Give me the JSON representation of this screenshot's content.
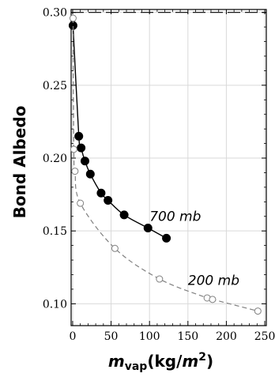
{
  "chart_data": {
    "type": "scatter",
    "ylabel": "Bond Albedo",
    "xlabel": {
      "base": "m",
      "sub": "vap",
      "rest": "(kg/",
      "unit": "m",
      "sup": "2",
      "close": ")"
    },
    "xlim": [
      -2,
      252
    ],
    "ylim": [
      0.085,
      0.302
    ],
    "xticks": [
      0,
      50,
      100,
      150,
      200,
      250
    ],
    "xtick_labels": [
      "0",
      "50",
      "100",
      "150",
      "200",
      "250"
    ],
    "yticks": [
      0.1,
      0.15,
      0.2,
      0.25,
      0.3
    ],
    "ytick_labels": [
      "0.10",
      "0.15",
      "0.20",
      "0.25",
      "0.30"
    ],
    "grid": true,
    "reference_line": {
      "y": 0.3,
      "style": "long-dash"
    },
    "series": [
      {
        "name": "700 mb",
        "marker": "filled-circle",
        "line": "solid",
        "color": "#000000",
        "points": [
          {
            "x": 0.5,
            "y": 0.291
          },
          {
            "x": 8,
            "y": 0.215
          },
          {
            "x": 11,
            "y": 0.207
          },
          {
            "x": 16,
            "y": 0.198
          },
          {
            "x": 23,
            "y": 0.189
          },
          {
            "x": 37,
            "y": 0.176
          },
          {
            "x": 46,
            "y": 0.171
          },
          {
            "x": 67,
            "y": 0.161
          },
          {
            "x": 98,
            "y": 0.152
          },
          {
            "x": 122,
            "y": 0.145
          }
        ],
        "label_x": 100,
        "label_y": 0.157
      },
      {
        "name": "200 mb",
        "marker": "open-circle",
        "line": "dashed",
        "color": "#808080",
        "points": [
          {
            "x": 0.5,
            "y": 0.296
          },
          {
            "x": 1.5,
            "y": 0.206
          },
          {
            "x": 3,
            "y": 0.191
          },
          {
            "x": 10,
            "y": 0.169
          },
          {
            "x": 55,
            "y": 0.138
          },
          {
            "x": 113,
            "y": 0.117
          },
          {
            "x": 175,
            "y": 0.104
          },
          {
            "x": 182,
            "y": 0.103
          },
          {
            "x": 241,
            "y": 0.095
          }
        ],
        "label_x": 150,
        "label_y": 0.113
      }
    ]
  }
}
